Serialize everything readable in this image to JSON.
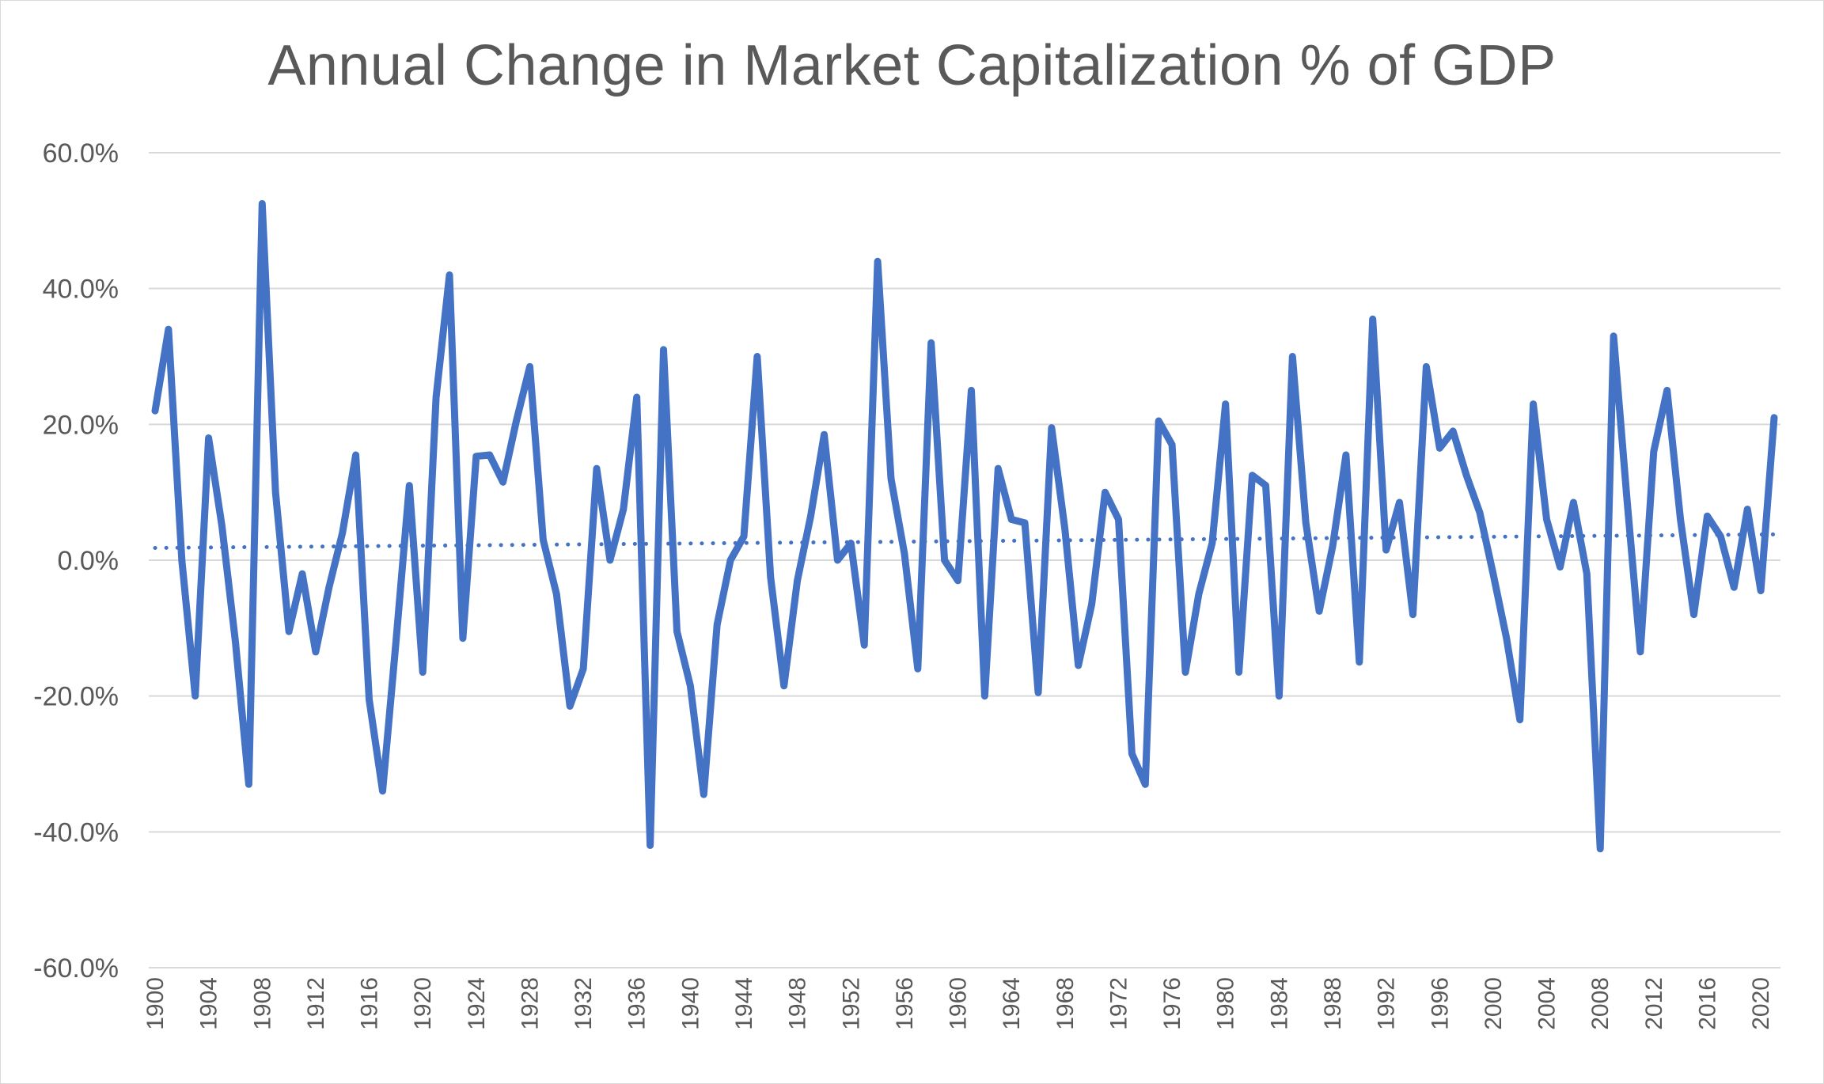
{
  "chart_data": {
    "type": "line",
    "title": "Annual Change in Market Capitalization % of GDP",
    "xlabel": "",
    "ylabel": "",
    "ylim": [
      -60,
      60
    ],
    "yticks": [
      "60.0%",
      "40.0%",
      "20.0%",
      "0.0%",
      "-20.0%",
      "-40.0%",
      "-60.0%"
    ],
    "ytick_values": [
      60,
      40,
      20,
      0,
      -20,
      -40,
      -60
    ],
    "xticks": [
      1900,
      1904,
      1908,
      1912,
      1916,
      1920,
      1924,
      1928,
      1932,
      1936,
      1940,
      1944,
      1948,
      1952,
      1956,
      1960,
      1964,
      1968,
      1972,
      1976,
      1980,
      1984,
      1988,
      1992,
      1996,
      2000,
      2004,
      2008,
      2012,
      2016,
      2020
    ],
    "xlim": [
      1900,
      2021
    ],
    "grid": true,
    "legend": "none",
    "colors": {
      "series": "#4472c4",
      "trend": "#4472c4",
      "grid": "#d9d9d9",
      "text": "#595959"
    },
    "series": [
      {
        "style": "solid",
        "x": [
          1900,
          1901,
          1902,
          1903,
          1904,
          1905,
          1906,
          1907,
          1908,
          1909,
          1910,
          1911,
          1912,
          1913,
          1914,
          1915,
          1916,
          1917,
          1918,
          1919,
          1920,
          1921,
          1922,
          1923,
          1924,
          1925,
          1926,
          1927,
          1928,
          1929,
          1930,
          1931,
          1932,
          1933,
          1934,
          1935,
          1936,
          1937,
          1938,
          1939,
          1940,
          1941,
          1942,
          1943,
          1944,
          1945,
          1946,
          1947,
          1948,
          1949,
          1950,
          1951,
          1952,
          1953,
          1954,
          1955,
          1956,
          1957,
          1958,
          1959,
          1960,
          1961,
          1962,
          1963,
          1964,
          1965,
          1966,
          1967,
          1968,
          1969,
          1970,
          1971,
          1972,
          1973,
          1974,
          1975,
          1976,
          1977,
          1978,
          1979,
          1980,
          1981,
          1982,
          1983,
          1984,
          1985,
          1986,
          1987,
          1988,
          1989,
          1990,
          1991,
          1992,
          1993,
          1994,
          1995,
          1996,
          1997,
          1998,
          1999,
          2000,
          2001,
          2002,
          2003,
          2004,
          2005,
          2006,
          2007,
          2008,
          2009,
          2010,
          2011,
          2012,
          2013,
          2014,
          2015,
          2016,
          2017,
          2018,
          2019,
          2020,
          2021
        ],
        "values": [
          22.0,
          34.0,
          0.0,
          -20.0,
          18.0,
          5.0,
          -12.0,
          -33.0,
          52.5,
          10.0,
          -10.5,
          -2.0,
          -13.5,
          -4.0,
          4.0,
          15.5,
          -20.5,
          -34.0,
          -12.0,
          11.0,
          -16.5,
          24.0,
          42.0,
          -11.5,
          15.3,
          15.5,
          11.5,
          20.5,
          28.5,
          3.0,
          -5.0,
          -21.5,
          -16.0,
          13.5,
          0.0,
          7.5,
          24.0,
          -42.0,
          31.0,
          -10.5,
          -18.5,
          -34.5,
          -9.5,
          0.0,
          3.5,
          30.0,
          -2.5,
          -18.5,
          -3.0,
          6.5,
          18.5,
          0.0,
          2.5,
          -12.5,
          44.0,
          12.0,
          1.0,
          -16.0,
          32.0,
          0.0,
          -3.0,
          25.0,
          -20.0,
          13.5,
          6.0,
          5.5,
          -19.5,
          19.5,
          4.5,
          -15.5,
          -6.5,
          10.0,
          6.0,
          -28.5,
          -33.0,
          20.5,
          17.0,
          -16.5,
          -5.0,
          2.5,
          23.0,
          -16.5,
          12.5,
          11.0,
          -20.0,
          30.0,
          5.5,
          -7.5,
          2.0,
          15.5,
          -15.0,
          35.5,
          1.5,
          8.5,
          -8.0,
          28.5,
          16.5,
          19.0,
          12.5,
          7.0,
          -2.0,
          -11.5,
          -23.5,
          23.0,
          6.0,
          -1.0,
          8.5,
          -2.0,
          -42.5,
          33.0,
          9.0,
          -13.5,
          16.0,
          25.0,
          6.0,
          -8.0,
          6.5,
          3.5,
          -4.0,
          7.5,
          -4.5,
          21.0
        ]
      },
      {
        "style": "dotted",
        "x": [
          1900,
          2021
        ],
        "values": [
          1.8,
          3.8
        ]
      }
    ]
  }
}
